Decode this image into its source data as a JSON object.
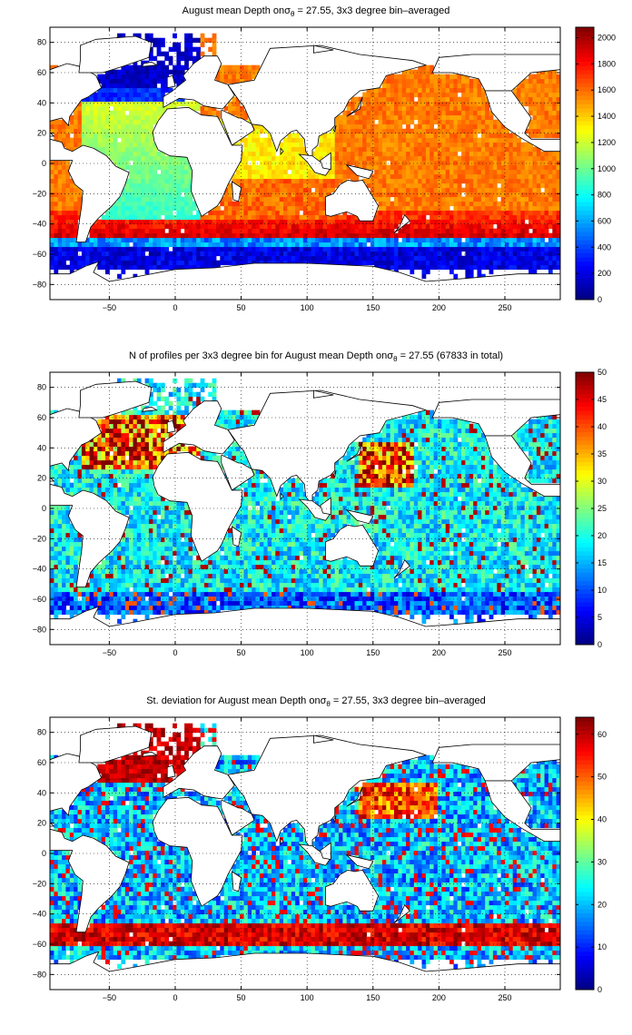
{
  "panels": [
    {
      "title_pre": "August mean Depth on",
      "title_sigma": "σ",
      "title_sub": "θ",
      "title_post": " = 27.55, 3x3 degree bin–averaged",
      "colorbar": {
        "min": 0,
        "max": 2080,
        "ticks": [
          0,
          200,
          400,
          600,
          800,
          1000,
          1200,
          1400,
          1600,
          1800,
          2000
        ],
        "tick_labels": [
          "0",
          "200",
          "400",
          "600",
          "800",
          "1000",
          "1200",
          "1400",
          "1600",
          "1800",
          "2000"
        ]
      },
      "field": "depth"
    },
    {
      "title_pre": "N of profiles per 3x3 degree bin for August mean Depth on",
      "title_sigma": "σ",
      "title_sub": "θ",
      "title_post": " = 27.55 (67833 in total)",
      "colorbar": {
        "min": 0,
        "max": 50,
        "ticks": [
          0,
          5,
          10,
          15,
          20,
          25,
          30,
          35,
          40,
          45,
          50
        ],
        "tick_labels": [
          "0",
          "5",
          "10",
          "15",
          "20",
          "25",
          "30",
          "35",
          "40",
          "45",
          "50"
        ]
      },
      "field": "count"
    },
    {
      "title_pre": "St. deviation for August mean Depth on",
      "title_sigma": "σ",
      "title_sub": "θ",
      "title_post": " = 27.55, 3x3 degree bin–averaged",
      "colorbar": {
        "min": 0,
        "max": 64,
        "ticks": [
          0,
          10,
          20,
          30,
          40,
          50,
          60
        ],
        "tick_labels": [
          "0",
          "10",
          "20",
          "30",
          "40",
          "50",
          "60"
        ]
      },
      "field": "std"
    }
  ],
  "x_axis": {
    "min": -95,
    "max": 292,
    "ticks": [
      -50,
      0,
      50,
      100,
      150,
      200,
      250
    ],
    "tick_labels": [
      "−50",
      "0",
      "50",
      "100",
      "150",
      "200",
      "250"
    ]
  },
  "y_axis": {
    "min": -90,
    "max": 90,
    "ticks": [
      -80,
      -60,
      -40,
      -20,
      0,
      20,
      40,
      60,
      80
    ],
    "tick_labels": [
      "−80",
      "−60",
      "−40",
      "−20",
      "0",
      "20",
      "40",
      "60",
      "80"
    ]
  },
  "grid": true,
  "colormap": "jet"
}
